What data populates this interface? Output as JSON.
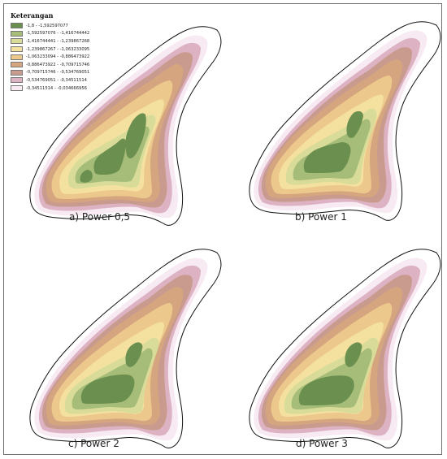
{
  "legend": {
    "title": "Keterangan",
    "classes": [
      {
        "label": "-1,8 - -1,592597077",
        "color": "#6b8f4e"
      },
      {
        "label": "-1,592597076 - -1,416744442",
        "color": "#a5bd79"
      },
      {
        "label": "-1,416744441 - -1,239867268",
        "color": "#d9dc98"
      },
      {
        "label": "-1,239867267 - -1,063233095",
        "color": "#f4e1a0"
      },
      {
        "label": "-1,063233094 - -0,886473922",
        "color": "#edc88c"
      },
      {
        "label": "-0,886473922 - -0,709715746",
        "color": "#d4a57e"
      },
      {
        "label": "-0,709715746 - -0,534769051",
        "color": "#c99b8f"
      },
      {
        "label": "-0,534769051 - -0,34511514",
        "color": "#ddb3c3"
      },
      {
        "label": "-0,34511514 - -0,034666956",
        "color": "#f7eaf2"
      }
    ]
  },
  "panels": [
    {
      "caption": "a) Power 0,5"
    },
    {
      "caption": "b) Power 1"
    },
    {
      "caption": "c) Power 2"
    },
    {
      "caption": "d) Power 3"
    }
  ]
}
